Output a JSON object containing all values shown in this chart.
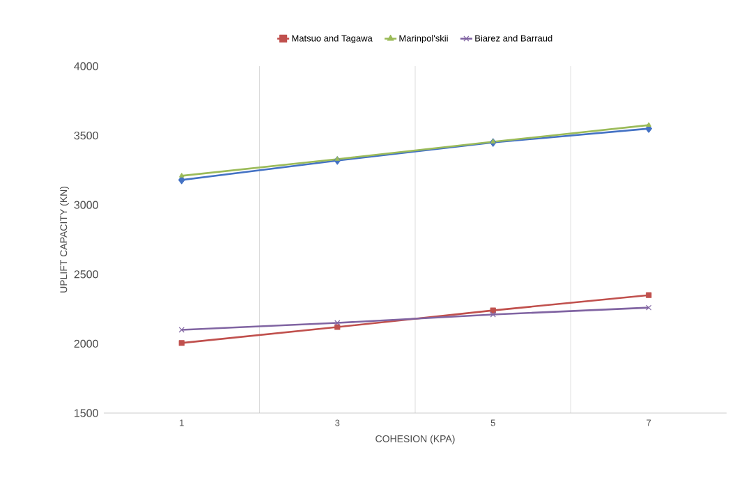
{
  "chart_data": {
    "type": "line",
    "xlabel": "COHESION (KPA)",
    "ylabel": "UPLIFT CAPACITY (KN)",
    "categories": [
      "1",
      "3",
      "5",
      "7"
    ],
    "series": [
      {
        "color": "#4472c4",
        "marker": "diamond",
        "values": [
          3180,
          3320,
          3450,
          3550
        ]
      },
      {
        "name": "Matsuo and Tagawa",
        "color": "#c0504d",
        "marker": "square",
        "values": [
          2005,
          2120,
          2240,
          2350
        ]
      },
      {
        "name": "Marinpol'skii",
        "color": "#9bbb59",
        "marker": "triangle",
        "values": [
          3210,
          3330,
          3455,
          3575
        ]
      },
      {
        "name": "Biarez and Barraud",
        "color": "#8064a2",
        "marker": "cross",
        "values": [
          2100,
          2150,
          2210,
          2260
        ]
      }
    ],
    "ylim": [
      1500,
      4000
    ],
    "yticks": [
      1500,
      2000,
      2500,
      3000,
      3500,
      4000
    ],
    "grid": "x",
    "legend": "top"
  }
}
